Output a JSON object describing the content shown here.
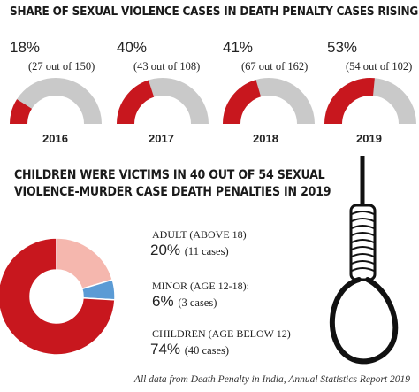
{
  "header": {
    "title": "SHARE OF SEXUAL VIOLENCE CASES IN DEATH PENALTY CASES RISING"
  },
  "gauges": [
    {
      "year": "2016",
      "percent_label": "18%",
      "detail": "(27 out of 150)",
      "share": 18
    },
    {
      "year": "2017",
      "percent_label": "40%",
      "detail": "(43 out of 108)",
      "share": 40
    },
    {
      "year": "2018",
      "percent_label": "41%",
      "detail": "(67 out of 162)",
      "share": 41
    },
    {
      "year": "2019",
      "percent_label": "53%",
      "detail": "(54 out of 102)",
      "share": 53
    }
  ],
  "section2": {
    "title": "CHILDREN WERE VICTIMS IN 40 OUT OF 54 SEXUAL VIOLENCE-MURDER CASE DEATH PENALTIES IN 2019"
  },
  "donut": [
    {
      "label": "ADULT (ABOVE 18)",
      "percent_label": "20%",
      "cases_label": "(11 cases)",
      "value": 11,
      "color": "#f5b7ae"
    },
    {
      "label": "MINOR (AGE 12-18):",
      "percent_label": "6%",
      "cases_label": "(3 cases)",
      "value": 3,
      "color": "#5b9bd5"
    },
    {
      "label": "CHILDREN (AGE BELOW 12)",
      "percent_label": "74%",
      "cases_label": "(40 cases)",
      "value": 40,
      "color": "#c8171e"
    }
  ],
  "source": "All data from Death Penalty in India, Annual Statistics Report 2019",
  "colors": {
    "highlight": "#c8171e",
    "track": "#c9c9c9",
    "text": "#1a1a1a"
  },
  "chart_data": [
    {
      "type": "gauge",
      "title": "SHARE OF SEXUAL VIOLENCE CASES IN DEATH PENALTY CASES RISING",
      "categories": [
        "2016",
        "2017",
        "2018",
        "2019"
      ],
      "values": [
        18,
        40,
        41,
        53
      ],
      "counts": [
        [
          27,
          150
        ],
        [
          43,
          108
        ],
        [
          67,
          162
        ],
        [
          54,
          102
        ]
      ]
    },
    {
      "type": "pie",
      "title": "CHILDREN WERE VICTIMS IN 40 OUT OF 54 SEXUAL VIOLENCE-MURDER CASE DEATH PENALTIES IN 2019",
      "categories": [
        "ADULT (ABOVE 18)",
        "MINOR (AGE 12-18)",
        "CHILDREN (AGE BELOW 12)"
      ],
      "values": [
        11,
        3,
        40
      ],
      "percents": [
        20,
        6,
        74
      ]
    }
  ]
}
